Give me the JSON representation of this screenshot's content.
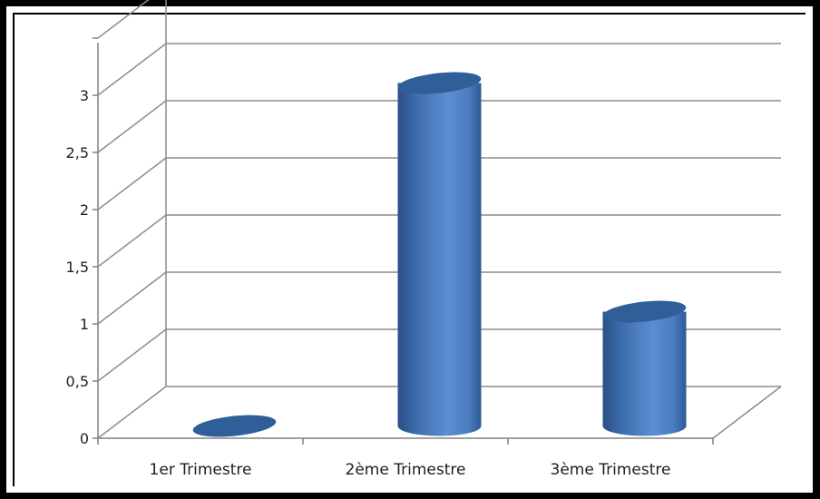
{
  "chart_data": {
    "type": "bar",
    "style": "3d-cylinder",
    "categories": [
      "1er Trimestre",
      "2ème Trimestre",
      "3ème Trimestre"
    ],
    "series": [
      {
        "values": [
          0,
          3,
          1
        ]
      }
    ],
    "ylim": [
      0,
      3.5
    ],
    "yticks": [
      0,
      0.5,
      1,
      1.5,
      2,
      2.5,
      3
    ],
    "ytick_labels": [
      "0",
      "0,5",
      "1",
      "1,5",
      "2",
      "2,5",
      "3"
    ],
    "grid": true,
    "legend": "none",
    "colors": {
      "bar_body": "#4f81bd",
      "bar_dark": "#2a5086",
      "bar_top": "#2f5e98",
      "grid": "#8c8c8c",
      "axis": "#808080"
    }
  }
}
